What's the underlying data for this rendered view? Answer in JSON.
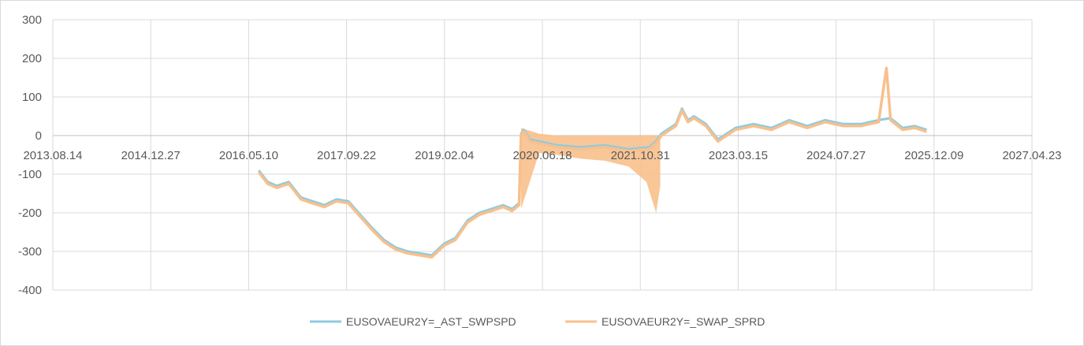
{
  "chart_data": {
    "type": "line",
    "title": "",
    "xlabel": "",
    "ylabel": "",
    "x_type": "date",
    "xlim": [
      "2013-08-14",
      "2027-04-23"
    ],
    "ylim": [
      -400,
      300
    ],
    "x_ticks": [
      "2013-08-14",
      "2014-12-27",
      "2016-05-10",
      "2017-09-22",
      "2019-02-04",
      "2020-06-18",
      "2021-10-31",
      "2023-03-15",
      "2024-07-27",
      "2025-12-09",
      "2027-04-23"
    ],
    "x_tick_labels": [
      "2013.08.14",
      "2014.12.27",
      "2016.05.10",
      "2017.09.22",
      "2019.02.04",
      "2020.06.18",
      "2021.10.31",
      "2023.03.15",
      "2024.07.27",
      "2025.12.09",
      "2027.04.23"
    ],
    "y_ticks": [
      -400,
      -300,
      -200,
      -100,
      0,
      100,
      200,
      300
    ],
    "y_tick_labels": [
      "-400",
      "-300",
      "-200",
      "-100",
      "0",
      "100",
      "200",
      "300"
    ],
    "grid": true,
    "legend_position": "bottom",
    "colors": {
      "series1": "#8ecbe0",
      "series2": "#f8c08c",
      "grid": "#d9d9d9",
      "axis": "#bfbfbf"
    },
    "series": [
      {
        "name": "EUSOVAEUR2Y=_AST_SWPSPD",
        "x": [
          "2016-07-01",
          "2016-08-15",
          "2016-10-01",
          "2016-12-01",
          "2017-02-01",
          "2017-04-01",
          "2017-06-01",
          "2017-08-01",
          "2017-10-01",
          "2017-12-01",
          "2018-02-01",
          "2018-04-01",
          "2018-06-01",
          "2018-08-01",
          "2018-10-01",
          "2018-12-01",
          "2019-02-01",
          "2019-04-01",
          "2019-06-01",
          "2019-08-01",
          "2019-10-01",
          "2019-12-01",
          "2020-01-15",
          "2020-02-20",
          "2020-03-01",
          "2020-03-15",
          "2020-04-15",
          "2020-06-01",
          "2020-09-01",
          "2021-01-01",
          "2021-05-01",
          "2021-09-01",
          "2021-12-15",
          "2022-01-20",
          "2022-02-15",
          "2022-04-01",
          "2022-05-01",
          "2022-06-01",
          "2022-07-01",
          "2022-08-01",
          "2022-10-01",
          "2022-12-01",
          "2023-03-01",
          "2023-06-01",
          "2023-09-01",
          "2023-12-01",
          "2024-03-01",
          "2024-06-01",
          "2024-09-01",
          "2024-12-01",
          "2025-03-01",
          "2025-05-01",
          "2025-07-01",
          "2025-09-01",
          "2025-11-01"
        ],
        "y": [
          -90,
          -120,
          -130,
          -120,
          -160,
          -170,
          -180,
          -165,
          -170,
          -205,
          -240,
          -270,
          -290,
          -300,
          -305,
          -310,
          -280,
          -265,
          -220,
          -200,
          -190,
          -180,
          -190,
          -175,
          5,
          15,
          -10,
          -15,
          -25,
          -30,
          -25,
          -35,
          -30,
          -15,
          5,
          20,
          30,
          70,
          40,
          50,
          30,
          -10,
          20,
          30,
          20,
          40,
          25,
          40,
          30,
          30,
          40,
          45,
          20,
          25,
          15
        ],
        "values_note": ""
      },
      {
        "name": "EUSOVAEUR2Y=_SWAP_SPRD",
        "x": [
          "2016-07-01",
          "2016-08-15",
          "2016-10-01",
          "2016-12-01",
          "2017-02-01",
          "2017-04-01",
          "2017-06-01",
          "2017-08-01",
          "2017-10-01",
          "2017-12-01",
          "2018-02-01",
          "2018-04-01",
          "2018-06-01",
          "2018-08-01",
          "2018-10-01",
          "2018-12-01",
          "2019-02-01",
          "2019-04-01",
          "2019-06-01",
          "2019-08-01",
          "2019-10-01",
          "2019-12-01",
          "2020-01-15",
          "2020-02-20",
          "2020-03-01",
          "2020-03-15",
          "2020-04-15",
          "2020-06-01",
          "2020-09-01",
          "2021-01-01",
          "2021-05-01",
          "2021-09-01",
          "2021-12-15",
          "2022-01-20",
          "2022-02-15",
          "2022-04-01",
          "2022-05-01",
          "2022-06-01",
          "2022-07-01",
          "2022-08-01",
          "2022-10-01",
          "2022-12-01",
          "2023-03-01",
          "2023-06-01",
          "2023-09-01",
          "2023-12-01",
          "2024-03-01",
          "2024-06-01",
          "2024-09-01",
          "2024-12-01",
          "2025-03-01",
          "2025-04-10",
          "2025-05-01",
          "2025-07-01",
          "2025-09-01",
          "2025-11-01"
        ],
        "y": [
          -95,
          -125,
          -135,
          -125,
          -165,
          -175,
          -185,
          -170,
          -175,
          -210,
          -245,
          -275,
          -295,
          -305,
          -310,
          -315,
          -285,
          -270,
          -225,
          -205,
          -195,
          -185,
          -195,
          -180,
          0,
          10,
          -15,
          -20,
          -30,
          -35,
          -30,
          -40,
          -35,
          -20,
          0,
          15,
          25,
          65,
          35,
          45,
          25,
          -15,
          15,
          25,
          15,
          35,
          20,
          35,
          25,
          25,
          35,
          175,
          40,
          15,
          20,
          10
        ],
        "band": {
          "x": [
            "2020-03-01",
            "2020-06-01",
            "2020-09-01",
            "2021-01-01",
            "2021-05-01",
            "2021-09-01",
            "2021-12-01",
            "2022-01-20",
            "2022-02-10"
          ],
          "low": [
            -190,
            -45,
            -50,
            -60,
            -65,
            -80,
            -120,
            -200,
            -130
          ],
          "high": [
            20,
            5,
            0,
            0,
            0,
            0,
            0,
            0,
            0
          ]
        }
      }
    ]
  }
}
